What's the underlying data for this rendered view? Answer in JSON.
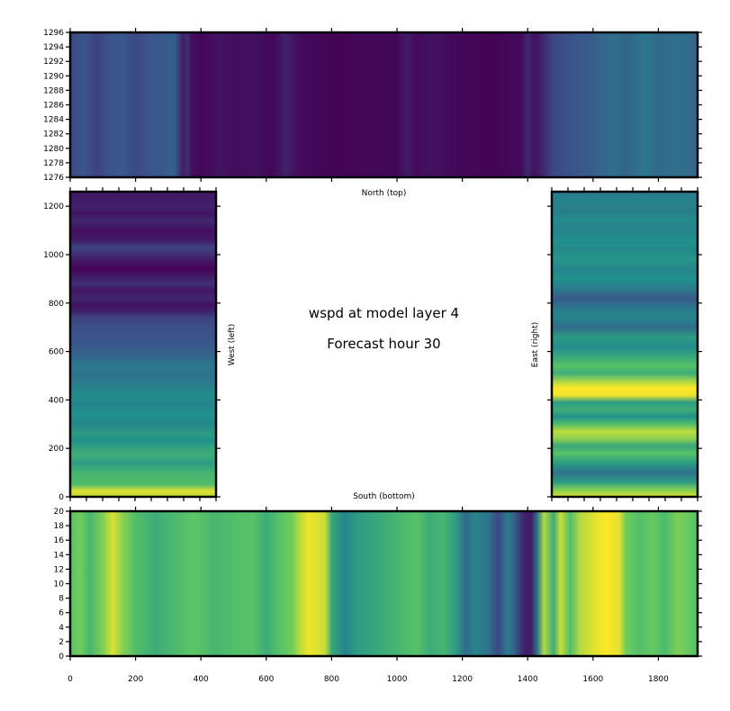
{
  "colors": {
    "purple": "#440154",
    "blue": "#3b528b",
    "teal": "#21918c",
    "green": "#5ec962",
    "yellow": "#fde725"
  },
  "center": {
    "title": "wspd at model layer 4",
    "subtitle": "Forecast hour 30"
  },
  "chart_data": [
    {
      "type": "heatmap",
      "panel": "north",
      "label": "North (top)",
      "xlim": [
        0,
        1920
      ],
      "ylim": [
        1276,
        1296
      ],
      "yticks": [
        1276,
        1278,
        1280,
        1282,
        1284,
        1286,
        1288,
        1290,
        1292,
        1294,
        1296
      ],
      "xticks": [
        0,
        200,
        400,
        600,
        800,
        1000,
        1200,
        1400,
        1600,
        1800
      ],
      "ytick_labels": [
        "1276",
        "1278",
        "1280",
        "1282",
        "1284",
        "1286",
        "1288",
        "1290",
        "1292",
        "1294",
        "1296"
      ],
      "colormap": "viridis",
      "stripes": "vertical",
      "profile": [
        [
          0,
          0.22
        ],
        [
          40,
          0.26
        ],
        [
          80,
          0.2
        ],
        [
          120,
          0.25
        ],
        [
          160,
          0.28
        ],
        [
          200,
          0.22
        ],
        [
          240,
          0.26
        ],
        [
          320,
          0.3
        ],
        [
          345,
          0.08
        ],
        [
          360,
          0.14
        ],
        [
          370,
          0.05
        ],
        [
          400,
          0.02
        ],
        [
          460,
          0.06
        ],
        [
          500,
          0.03
        ],
        [
          560,
          0.05
        ],
        [
          620,
          0.02
        ],
        [
          660,
          0.1
        ],
        [
          700,
          0.03
        ],
        [
          800,
          0.01
        ],
        [
          900,
          0.02
        ],
        [
          1000,
          0.02
        ],
        [
          1030,
          0.08
        ],
        [
          1060,
          0.03
        ],
        [
          1100,
          0.05
        ],
        [
          1200,
          0.02
        ],
        [
          1300,
          0.01
        ],
        [
          1380,
          0.03
        ],
        [
          1400,
          0.12
        ],
        [
          1420,
          0.05
        ],
        [
          1440,
          0.1
        ],
        [
          1480,
          0.22
        ],
        [
          1540,
          0.26
        ],
        [
          1600,
          0.3
        ],
        [
          1660,
          0.36
        ],
        [
          1700,
          0.32
        ],
        [
          1760,
          0.4
        ],
        [
          1800,
          0.34
        ],
        [
          1860,
          0.37
        ],
        [
          1920,
          0.33
        ]
      ]
    },
    {
      "type": "heatmap",
      "panel": "west",
      "label": "West (left)",
      "xlim": [
        0,
        450
      ],
      "ylim": [
        0,
        1260
      ],
      "yticks": [
        0,
        200,
        400,
        600,
        800,
        1000,
        1200
      ],
      "ytick_labels": [
        "0",
        "200",
        "400",
        "600",
        "800",
        "1000",
        "1200"
      ],
      "colormap": "viridis",
      "stripes": "horizontal",
      "profile": [
        [
          0,
          0.9
        ],
        [
          25,
          0.95
        ],
        [
          50,
          0.7
        ],
        [
          100,
          0.65
        ],
        [
          140,
          0.55
        ],
        [
          170,
          0.62
        ],
        [
          200,
          0.58
        ],
        [
          230,
          0.5
        ],
        [
          260,
          0.55
        ],
        [
          300,
          0.46
        ],
        [
          340,
          0.5
        ],
        [
          380,
          0.45
        ],
        [
          420,
          0.48
        ],
        [
          460,
          0.42
        ],
        [
          500,
          0.38
        ],
        [
          540,
          0.4
        ],
        [
          580,
          0.33
        ],
        [
          620,
          0.28
        ],
        [
          660,
          0.25
        ],
        [
          700,
          0.24
        ],
        [
          740,
          0.2
        ],
        [
          760,
          0.12
        ],
        [
          790,
          0.05
        ],
        [
          820,
          0.12
        ],
        [
          850,
          0.06
        ],
        [
          880,
          0.14
        ],
        [
          910,
          0.08
        ],
        [
          940,
          0.01
        ],
        [
          970,
          0.06
        ],
        [
          1000,
          0.14
        ],
        [
          1030,
          0.2
        ],
        [
          1060,
          0.08
        ],
        [
          1100,
          0.04
        ],
        [
          1140,
          0.12
        ],
        [
          1170,
          0.06
        ],
        [
          1200,
          0.1
        ],
        [
          1240,
          0.07
        ],
        [
          1260,
          0.09
        ]
      ]
    },
    {
      "type": "heatmap",
      "panel": "east",
      "label": "East (right)",
      "xlim": [
        0,
        450
      ],
      "ylim": [
        0,
        1260
      ],
      "yticks": [
        0,
        200,
        400,
        600,
        800,
        1000,
        1200
      ],
      "colormap": "viridis",
      "stripes": "horizontal",
      "profile": [
        [
          0,
          0.95
        ],
        [
          30,
          0.8
        ],
        [
          60,
          0.55
        ],
        [
          100,
          0.38
        ],
        [
          140,
          0.55
        ],
        [
          180,
          0.72
        ],
        [
          210,
          0.6
        ],
        [
          240,
          0.82
        ],
        [
          270,
          0.9
        ],
        [
          300,
          0.7
        ],
        [
          330,
          0.5
        ],
        [
          360,
          0.62
        ],
        [
          390,
          0.55
        ],
        [
          420,
          0.98
        ],
        [
          450,
          1.0
        ],
        [
          480,
          0.85
        ],
        [
          510,
          0.62
        ],
        [
          540,
          0.72
        ],
        [
          580,
          0.6
        ],
        [
          620,
          0.48
        ],
        [
          660,
          0.55
        ],
        [
          700,
          0.35
        ],
        [
          740,
          0.45
        ],
        [
          780,
          0.4
        ],
        [
          820,
          0.28
        ],
        [
          860,
          0.42
        ],
        [
          900,
          0.5
        ],
        [
          940,
          0.45
        ],
        [
          980,
          0.52
        ],
        [
          1020,
          0.46
        ],
        [
          1060,
          0.5
        ],
        [
          1100,
          0.45
        ],
        [
          1140,
          0.48
        ],
        [
          1180,
          0.42
        ],
        [
          1220,
          0.45
        ],
        [
          1260,
          0.4
        ]
      ]
    },
    {
      "type": "heatmap",
      "panel": "south",
      "label": "South (bottom)",
      "xlim": [
        0,
        1920
      ],
      "ylim": [
        0,
        20
      ],
      "xticks": [
        0,
        200,
        400,
        600,
        800,
        1000,
        1200,
        1400,
        1600,
        1800
      ],
      "xtick_labels": [
        "0",
        "200",
        "400",
        "600",
        "800",
        "1000",
        "1200",
        "1400",
        "1600",
        "1800"
      ],
      "yticks": [
        0,
        2,
        4,
        6,
        8,
        10,
        12,
        14,
        16,
        18,
        20
      ],
      "ytick_labels": [
        "0",
        "2",
        "4",
        "6",
        "8",
        "10",
        "12",
        "14",
        "16",
        "18",
        "20"
      ],
      "colormap": "viridis",
      "stripes": "vertical",
      "profile": [
        [
          0,
          0.72
        ],
        [
          30,
          0.78
        ],
        [
          60,
          0.66
        ],
        [
          100,
          0.8
        ],
        [
          130,
          0.95
        ],
        [
          160,
          0.82
        ],
        [
          200,
          0.7
        ],
        [
          260,
          0.62
        ],
        [
          320,
          0.68
        ],
        [
          380,
          0.74
        ],
        [
          440,
          0.66
        ],
        [
          500,
          0.7
        ],
        [
          560,
          0.72
        ],
        [
          600,
          0.62
        ],
        [
          640,
          0.72
        ],
        [
          680,
          0.78
        ],
        [
          700,
          0.88
        ],
        [
          730,
          0.98
        ],
        [
          780,
          0.92
        ],
        [
          800,
          0.6
        ],
        [
          840,
          0.45
        ],
        [
          880,
          0.55
        ],
        [
          940,
          0.6
        ],
        [
          1000,
          0.66
        ],
        [
          1060,
          0.72
        ],
        [
          1100,
          0.62
        ],
        [
          1140,
          0.66
        ],
        [
          1180,
          0.55
        ],
        [
          1210,
          0.35
        ],
        [
          1240,
          0.45
        ],
        [
          1280,
          0.38
        ],
        [
          1310,
          0.22
        ],
        [
          1340,
          0.42
        ],
        [
          1360,
          0.3
        ],
        [
          1390,
          0.1
        ],
        [
          1410,
          0.08
        ],
        [
          1430,
          0.4
        ],
        [
          1450,
          0.88
        ],
        [
          1480,
          0.62
        ],
        [
          1500,
          0.92
        ],
        [
          1530,
          0.7
        ],
        [
          1560,
          0.88
        ],
        [
          1600,
          0.95
        ],
        [
          1640,
          1.0
        ],
        [
          1680,
          0.96
        ],
        [
          1700,
          0.78
        ],
        [
          1740,
          0.7
        ],
        [
          1780,
          0.76
        ],
        [
          1820,
          0.68
        ],
        [
          1860,
          0.8
        ],
        [
          1900,
          0.75
        ],
        [
          1920,
          0.72
        ]
      ]
    }
  ]
}
